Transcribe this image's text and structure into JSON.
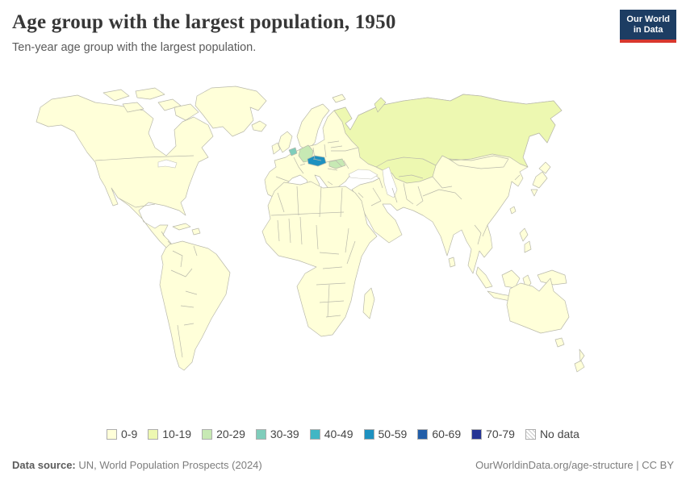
{
  "header": {
    "title": "Age group with the largest population, 1950",
    "subtitle": "Ten-year age group with the largest population.",
    "logo_line1": "Our World",
    "logo_line2": "in Data",
    "logo_bg": "#1d3d63",
    "logo_accent": "#d8372e"
  },
  "legend": {
    "items": [
      {
        "label": "0-9",
        "color": "#ffffd9"
      },
      {
        "label": "10-19",
        "color": "#edf8b1"
      },
      {
        "label": "20-29",
        "color": "#c7e9b4"
      },
      {
        "label": "30-39",
        "color": "#7fcdbb"
      },
      {
        "label": "40-49",
        "color": "#41b6c4"
      },
      {
        "label": "50-59",
        "color": "#1d91c0"
      },
      {
        "label": "60-69",
        "color": "#225ea8"
      },
      {
        "label": "70-79",
        "color": "#253494"
      },
      {
        "label": "No data",
        "color": "hatch"
      }
    ]
  },
  "footer": {
    "source_label": "Data source:",
    "source_text": " UN, World Population Prospects (2024)",
    "credit_text": "OurWorldinData.org/age-structure | CC BY"
  },
  "chart_data": {
    "type": "choropleth-map",
    "title": "Age group with the largest population, 1950",
    "subtitle": "Ten-year age group with the largest population.",
    "year": 1950,
    "categories": [
      "0-9",
      "10-19",
      "20-29",
      "30-39",
      "40-49",
      "50-59",
      "60-69",
      "70-79",
      "No data"
    ],
    "palette": {
      "0-9": "#ffffd9",
      "10-19": "#edf8b1",
      "20-29": "#c7e9b4",
      "30-39": "#7fcdbb",
      "40-49": "#41b6c4",
      "50-59": "#1d91c0",
      "60-69": "#225ea8",
      "70-79": "#253494",
      "No data": "#ffffff"
    },
    "default_category": "0-9",
    "region_categories": {
      "Russia": "10-19",
      "Kazakhstan": "10-19",
      "Uzbekistan": "10-19",
      "Germany": "20-29",
      "Bulgaria": "20-29",
      "Belgium": "30-39",
      "Austria": "50-59"
    },
    "note_visible_reading": "All other visible countries are shaded 0-9; oceans white; borders light gray; No data shown as diagonal hatch in legend only."
  }
}
